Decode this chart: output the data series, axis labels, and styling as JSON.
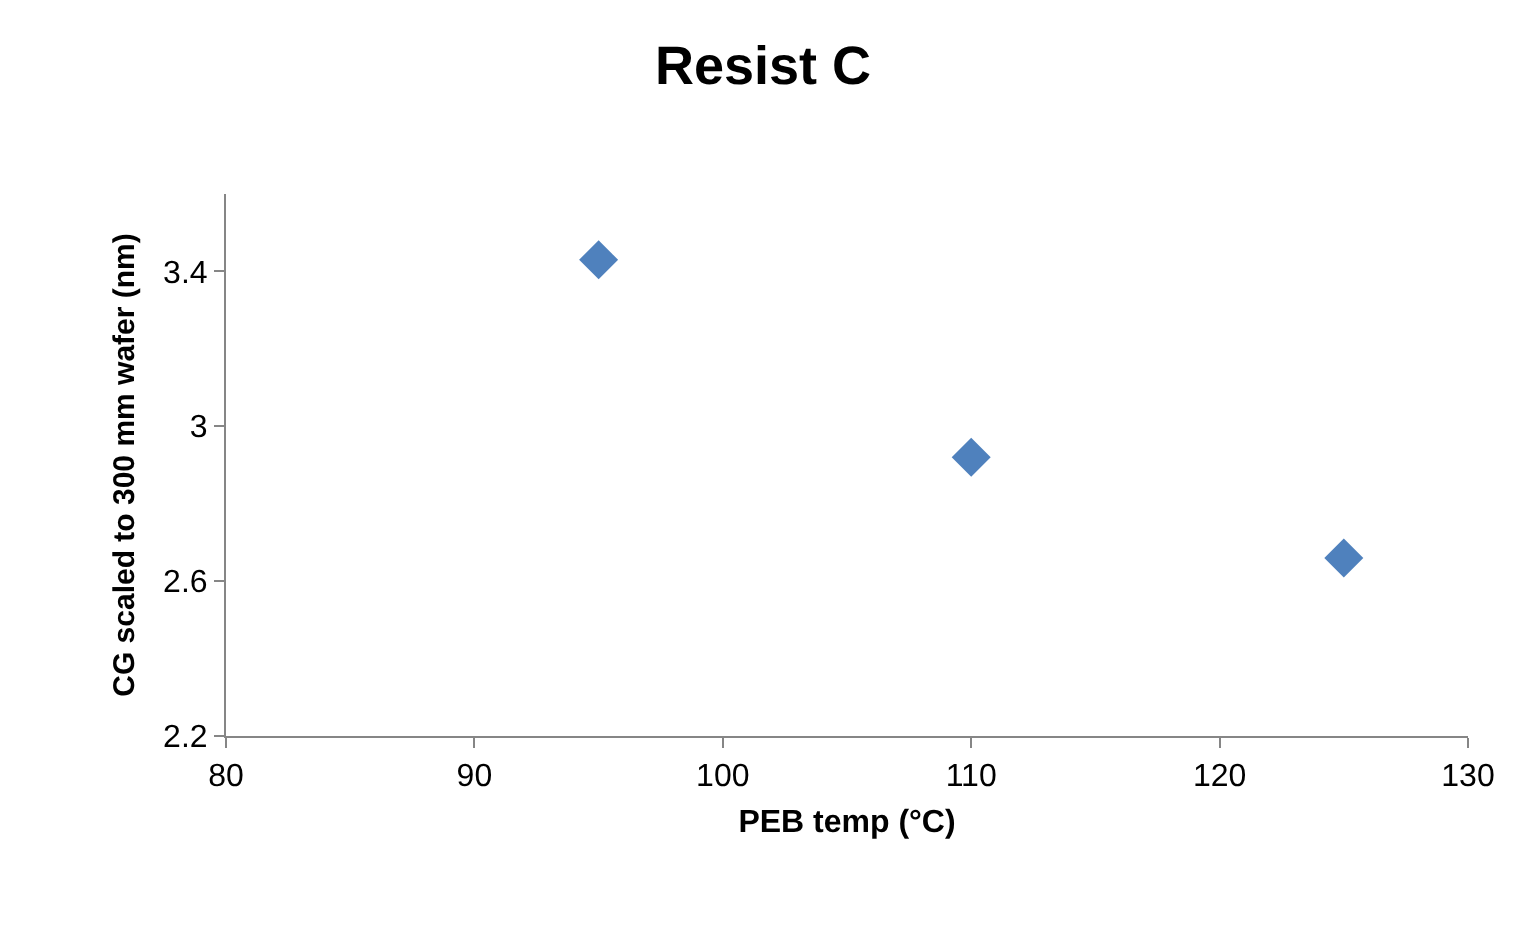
{
  "chart_data": {
    "type": "scatter",
    "title": "Resist C",
    "xlabel": "PEB temp (°C)",
    "ylabel": "CG scaled to 300 mm wafer (nm)",
    "x": [
      95,
      110,
      125
    ],
    "series": [
      {
        "color": "#4f81bd",
        "values": [
          3.43,
          2.92,
          2.66
        ]
      }
    ],
    "xlim": [
      80,
      130
    ],
    "xticks": [
      80,
      90,
      100,
      110,
      120,
      130
    ],
    "ylim": [
      2.2,
      3.6
    ],
    "yticks": [
      2.2,
      2.6,
      3,
      3.4
    ],
    "marker": "diamond",
    "grid": false
  }
}
